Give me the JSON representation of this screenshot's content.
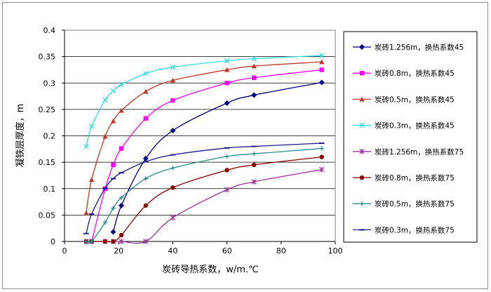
{
  "chart_data": {
    "type": "line",
    "title": "",
    "xlabel": "炭砖导热系数，w/m.℃",
    "ylabel": "凝铁层厚度，m",
    "xlim": [
      0,
      100
    ],
    "ylim": [
      0,
      0.4
    ],
    "xticks": [
      "0",
      "20",
      "40",
      "60",
      "80",
      "100"
    ],
    "yticks": [
      "0",
      "0.05",
      "0.1",
      "0.15",
      "0.2",
      "0.25",
      "0.3",
      "0.35",
      "0.4"
    ],
    "grid": true,
    "legend_position": "right",
    "series": [
      {
        "name": "炭砖1.256m，换热系数45",
        "color": "#000080",
        "marker": "diamond",
        "x": [
          18,
          21,
          30,
          40,
          60,
          70,
          95
        ],
        "y": [
          0.018,
          0.068,
          0.157,
          0.21,
          0.262,
          0.277,
          0.301
        ]
      },
      {
        "name": "炭砖0.8m，换热系数45",
        "color": "#ff00ff",
        "marker": "square",
        "x": [
          10,
          15,
          18,
          21,
          30,
          40,
          60,
          70,
          95
        ],
        "y": [
          0.0,
          0.1,
          0.145,
          0.176,
          0.233,
          0.267,
          0.3,
          0.31,
          0.325
        ]
      },
      {
        "name": "炭砖0.5m，换热系数45",
        "color": "#c0392b",
        "marker": "triangle",
        "x": [
          8,
          10,
          15,
          18,
          21,
          30,
          40,
          60,
          70,
          95
        ],
        "y": [
          0.054,
          0.117,
          0.199,
          0.228,
          0.248,
          0.284,
          0.305,
          0.325,
          0.332,
          0.34
        ]
      },
      {
        "name": "炭砖0.3m，换热系数45",
        "color": "#33dddd",
        "marker": "x",
        "x": [
          8,
          10,
          15,
          18,
          21,
          30,
          40,
          60,
          70,
          95
        ],
        "y": [
          0.18,
          0.218,
          0.268,
          0.285,
          0.297,
          0.318,
          0.33,
          0.342,
          0.346,
          0.352
        ]
      },
      {
        "name": "炭砖1.256m，换热系数75",
        "color": "#993399",
        "marker": "star",
        "x": [
          8,
          10,
          15,
          18,
          21,
          30,
          40,
          60,
          70,
          95
        ],
        "y": [
          0.0,
          0.0,
          0.0,
          0.0,
          0.0,
          0.0,
          0.045,
          0.098,
          0.113,
          0.136
        ]
      },
      {
        "name": "炭砖0.8m，换热系数75",
        "color": "#8b0000",
        "marker": "circle",
        "x": [
          8,
          10,
          15,
          18,
          21,
          30,
          40,
          60,
          70,
          95
        ],
        "y": [
          0.0,
          0.0,
          0.0,
          0.0,
          0.012,
          0.068,
          0.102,
          0.135,
          0.145,
          0.16
        ]
      },
      {
        "name": "炭砖0.5m，换热系数75",
        "color": "#2e8b8b",
        "marker": "plus",
        "x": [
          8,
          10,
          15,
          18,
          21,
          30,
          40,
          60,
          70,
          95
        ],
        "y": [
          0.0,
          0.0,
          0.036,
          0.063,
          0.083,
          0.119,
          0.139,
          0.161,
          0.166,
          0.176
        ]
      },
      {
        "name": "炭砖0.3m，换热系数75",
        "color": "#1a1a8c",
        "marker": "dash",
        "x": [
          8,
          10,
          15,
          18,
          21,
          30,
          40,
          60,
          70,
          95
        ],
        "y": [
          0.015,
          0.052,
          0.101,
          0.119,
          0.13,
          0.151,
          0.164,
          0.177,
          0.18,
          0.186
        ]
      }
    ]
  }
}
